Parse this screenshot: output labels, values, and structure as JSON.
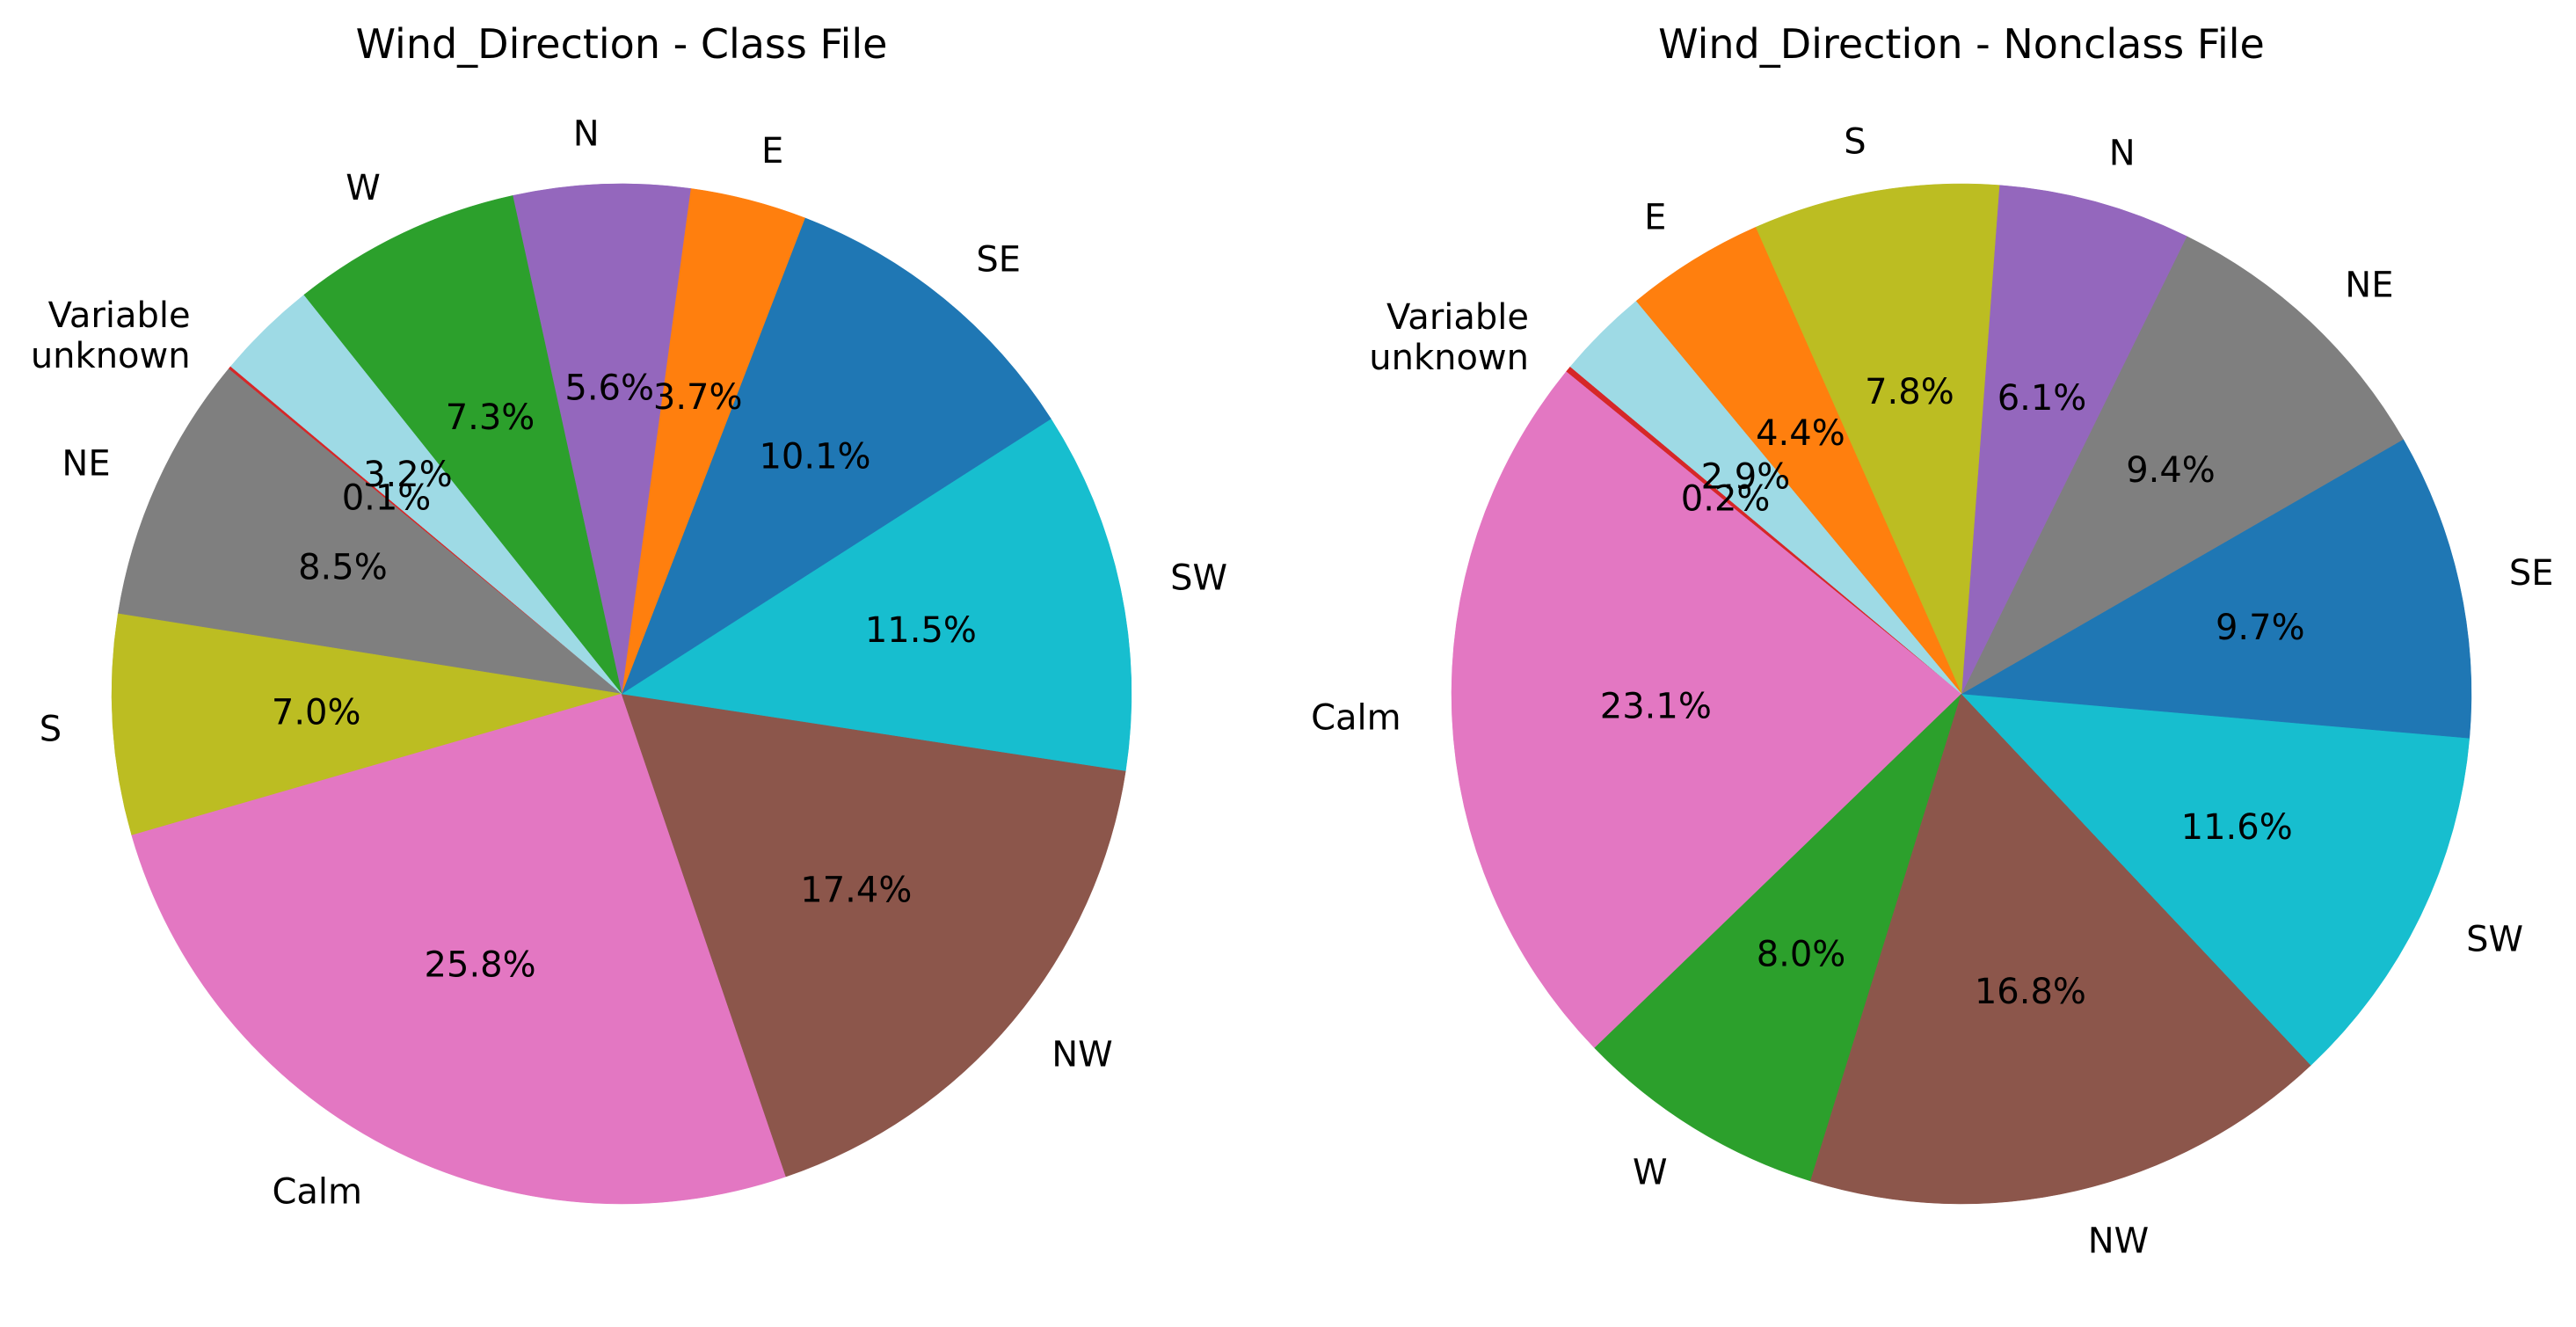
{
  "chart_data": [
    {
      "type": "pie",
      "title": "Wind_Direction - Class File",
      "start_angle_deg": 140.06,
      "direction": "counterclockwise",
      "slices": [
        {
          "label": "Variable\nunknown",
          "value": 0.1,
          "pct_text": "0.1%",
          "color": "#d62728"
        },
        {
          "label": "NE",
          "value": 8.5,
          "pct_text": "8.5%",
          "color": "#7f7f7f"
        },
        {
          "label": "S",
          "value": 7.0,
          "pct_text": "7.0%",
          "color": "#bcbd22"
        },
        {
          "label": "Calm",
          "value": 25.8,
          "pct_text": "25.8%",
          "color": "#e377c2"
        },
        {
          "label": "NW",
          "value": 17.4,
          "pct_text": "17.4%",
          "color": "#8c564b"
        },
        {
          "label": "SW",
          "value": 11.5,
          "pct_text": "11.5%",
          "color": "#17becf"
        },
        {
          "label": "SE",
          "value": 10.1,
          "pct_text": "10.1%",
          "color": "#1f77b4"
        },
        {
          "label": "E",
          "value": 3.7,
          "pct_text": "3.7%",
          "color": "#ff7f0e"
        },
        {
          "label": "N",
          "value": 5.6,
          "pct_text": "5.6%",
          "color": "#9467bd"
        },
        {
          "label": "W",
          "value": 7.3,
          "pct_text": "7.3%",
          "color": "#2ca02c"
        },
        {
          "label": "",
          "value": 3.2,
          "pct_text": "3.2%",
          "color": "#9edae5"
        }
      ]
    },
    {
      "type": "pie",
      "title": "Wind_Direction - Nonclass File",
      "start_angle_deg": 140.1,
      "direction": "counterclockwise",
      "slices": [
        {
          "label": "Variable\nunknown",
          "value": 0.2,
          "pct_text": "0.2%",
          "color": "#d62728"
        },
        {
          "label": "Calm",
          "value": 23.1,
          "pct_text": "23.1%",
          "color": "#e377c2"
        },
        {
          "label": "W",
          "value": 8.0,
          "pct_text": "8.0%",
          "color": "#2ca02c"
        },
        {
          "label": "NW",
          "value": 16.8,
          "pct_text": "16.8%",
          "color": "#8c564b"
        },
        {
          "label": "SW",
          "value": 11.6,
          "pct_text": "11.6%",
          "color": "#17becf"
        },
        {
          "label": "SE",
          "value": 9.7,
          "pct_text": "9.7%",
          "color": "#1f77b4"
        },
        {
          "label": "NE",
          "value": 9.4,
          "pct_text": "9.4%",
          "color": "#7f7f7f"
        },
        {
          "label": "N",
          "value": 6.1,
          "pct_text": "6.1%",
          "color": "#9467bd"
        },
        {
          "label": "S",
          "value": 7.8,
          "pct_text": "7.8%",
          "color": "#bcbd22"
        },
        {
          "label": "E",
          "value": 4.4,
          "pct_text": "4.4%",
          "color": "#ff7f0e"
        },
        {
          "label": "",
          "value": 2.9,
          "pct_text": "2.9%",
          "color": "#9edae5"
        }
      ]
    }
  ]
}
